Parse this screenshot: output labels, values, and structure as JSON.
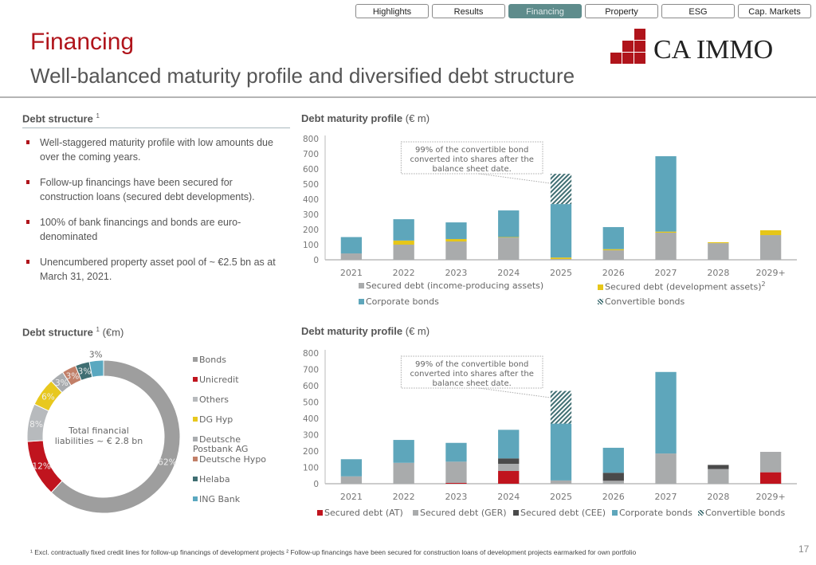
{
  "nav": {
    "tabs": [
      {
        "label": "Highlights",
        "active": false
      },
      {
        "label": "Results",
        "active": false
      },
      {
        "label": "Financing",
        "active": true
      },
      {
        "label": "Property",
        "active": false
      },
      {
        "label": "ESG",
        "active": false
      },
      {
        "label": "Cap. Markets",
        "active": false
      }
    ]
  },
  "header": {
    "title": "Financing",
    "subtitle": "Well-balanced maturity profile and diversified debt structure",
    "logo_text": "CA IMMO"
  },
  "colors": {
    "brand_red": "#b0141b",
    "secured_gray": "#a9abac",
    "dev_yellow": "#e6c619",
    "corporate_teal": "#5ea6bb",
    "convertible_hatch": "#3f6e72",
    "secured_at": "#c0141e",
    "secured_cee": "#4a4a4a"
  },
  "debt_text": {
    "heading": "Debt structure",
    "heading_sup": "1",
    "bullets": [
      "Well-staggered maturity profile with low amounts due over the coming years.",
      "Follow-up financings have been secured for construction loans (secured debt developments).",
      "100% of bank financings and bonds are euro-denominated",
      "Unencumbered property asset pool of ~ €2.5 bn as at March 31, 2021."
    ]
  },
  "donut_heading": {
    "label": "Debt structure",
    "sup": "1",
    "unit": "(€m)"
  },
  "donut_center": [
    "Total financial",
    "liabilities ~ € 2.8 bn"
  ],
  "maturity1_heading": {
    "label": "Debt maturity profile",
    "unit": "(€ m)"
  },
  "maturity2_heading": {
    "label": "Debt maturity profile",
    "unit": "(€ m)"
  },
  "chart_data": [
    {
      "type": "bar",
      "stacked": true,
      "title": "Debt maturity profile (€ m)",
      "categories": [
        "2021",
        "2022",
        "2023",
        "2024",
        "2025",
        "2026",
        "2027",
        "2028",
        "2029+"
      ],
      "ylim": [
        0,
        800
      ],
      "yticks": [
        0,
        100,
        200,
        300,
        400,
        500,
        600,
        700,
        800
      ],
      "series": [
        {
          "name": "Secured debt (income-producing assets)",
          "color": "#a9abac",
          "pattern": "solid",
          "values": [
            42,
            100,
            121,
            147,
            5,
            63,
            179,
            110,
            163
          ]
        },
        {
          "name": "Secured debt (development assets)",
          "sup": "2",
          "color": "#e6c619",
          "pattern": "solid",
          "values": [
            0,
            27,
            16,
            3,
            10,
            7,
            7,
            6,
            32
          ]
        },
        {
          "name": "Corporate bonds",
          "color": "#5ea6bb",
          "pattern": "solid",
          "values": [
            108,
            141,
            110,
            176,
            353,
            146,
            498,
            0,
            0
          ]
        },
        {
          "name": "Convertible bonds",
          "color": "#3f6e72",
          "pattern": "hatch",
          "values": [
            0,
            0,
            0,
            0,
            200,
            0,
            0,
            0,
            0
          ]
        }
      ],
      "annotation": "99% of the convertible bond converted into shares after the balance sheet date.",
      "legend": [
        "Secured debt (income-producing assets)",
        "Secured debt (development assets)",
        "Corporate bonds",
        "Convertible bonds"
      ]
    },
    {
      "type": "bar",
      "stacked": true,
      "title": "Debt maturity profile (€ m)",
      "categories": [
        "2021",
        "2022",
        "2023",
        "2024",
        "2025",
        "2026",
        "2027",
        "2028",
        "2029+"
      ],
      "ylim": [
        0,
        800
      ],
      "yticks": [
        0,
        100,
        200,
        300,
        400,
        500,
        600,
        700,
        800
      ],
      "series": [
        {
          "name": "Secured debt (AT)",
          "color": "#c0141e",
          "pattern": "solid",
          "values": [
            0,
            0,
            5,
            78,
            0,
            0,
            0,
            0,
            70
          ]
        },
        {
          "name": "Secured debt (GER)",
          "color": "#a9abac",
          "pattern": "solid",
          "values": [
            45,
            128,
            130,
            44,
            20,
            18,
            185,
            90,
            125
          ]
        },
        {
          "name": "Secured debt (CEE)",
          "color": "#4a4a4a",
          "pattern": "solid",
          "values": [
            0,
            0,
            0,
            33,
            0,
            49,
            0,
            25,
            0
          ]
        },
        {
          "name": "Corporate bonds",
          "color": "#5ea6bb",
          "pattern": "solid",
          "values": [
            105,
            140,
            115,
            175,
            348,
            153,
            499,
            0,
            0
          ]
        },
        {
          "name": "Convertible bonds",
          "color": "#3f6e72",
          "pattern": "hatch",
          "values": [
            0,
            0,
            0,
            0,
            200,
            0,
            0,
            0,
            0
          ]
        }
      ],
      "annotation": "99% of the convertible bond converted into shares after the balance sheet date.",
      "legend": [
        "Secured debt (AT)",
        "Secured debt (GER)",
        "Secured debt (CEE)",
        "Corporate bonds",
        "Convertible bonds"
      ]
    },
    {
      "type": "pie",
      "variant": "donut",
      "title": "Debt structure (€m)",
      "center_label": "Total financial liabilities ~ € 2.8 bn",
      "slices": [
        {
          "label": "Bonds",
          "value": 62,
          "display": "62%",
          "color": "#9e9e9e"
        },
        {
          "label": "Unicredit",
          "value": 12,
          "display": "12%",
          "color": "#c0141e"
        },
        {
          "label": "Others",
          "value": 8,
          "display": "8%",
          "color": "#b7babd"
        },
        {
          "label": "DG Hyp",
          "value": 6,
          "display": "6%",
          "color": "#e8c81e"
        },
        {
          "label": "Deutsche Postbank AG",
          "value": 3,
          "display": "3%",
          "color": "#a9acaf"
        },
        {
          "label": "Deutsche Hypo",
          "value": 3,
          "display": "3%",
          "color": "#c27f68"
        },
        {
          "label": "Helaba",
          "value": 3,
          "display": "3%",
          "color": "#3f6e72"
        },
        {
          "label": "ING Bank",
          "value": 3,
          "display": "3%",
          "color": "#5aa8c0"
        }
      ]
    }
  ],
  "footnote": "¹ Excl. contractually fixed credit lines for follow-up financings of development projects ² Follow-up financings have been secured for construction loans of development projects earmarked for own portfolio",
  "page_number": "17"
}
